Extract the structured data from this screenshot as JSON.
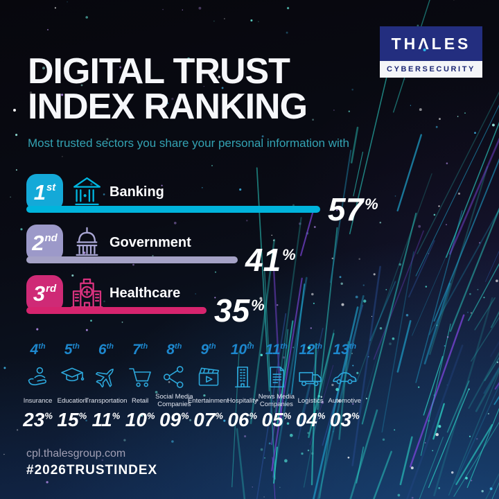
{
  "brand": {
    "logo_part1": "TH",
    "logo_lambda": "Λ",
    "logo_part2": "LES",
    "logo_sub": "CYBERSECURITY",
    "navy": "#232e7f",
    "accent_dot": "#2ab5e8"
  },
  "header": {
    "title_line1": "DIGITAL TRUST",
    "title_line2": "INDEX RANKING",
    "subtitle": "Most trusted sectors you share your personal information with"
  },
  "top_rankings": [
    {
      "rank": "1",
      "suffix": "st",
      "label": "Banking",
      "value": 57,
      "display": "57",
      "unit": "%",
      "badge_color": "#14a9d8",
      "bar_color": "#00b4dc",
      "icon": "bank-icon"
    },
    {
      "rank": "2",
      "suffix": "nd",
      "label": "Government",
      "value": 41,
      "display": "41",
      "unit": "%",
      "badge_color": "#9c99c9",
      "bar_color": "#a5a2c6",
      "icon": "government-icon"
    },
    {
      "rank": "3",
      "suffix": "rd",
      "label": "Healthcare",
      "value": 35,
      "display": "35",
      "unit": "%",
      "badge_color": "#cf2a76",
      "bar_color": "#d6246e",
      "icon": "hospital-icon"
    }
  ],
  "minor_rankings": [
    {
      "rank": "4",
      "suffix": "th",
      "label": "Insurance",
      "value": 23,
      "display": "23",
      "unit": "%",
      "icon": "insurance-icon"
    },
    {
      "rank": "5",
      "suffix": "th",
      "label": "Education",
      "value": 15,
      "display": "15",
      "unit": "%",
      "icon": "education-icon"
    },
    {
      "rank": "6",
      "suffix": "th",
      "label": "Transportation",
      "value": 11,
      "display": "11",
      "unit": "%",
      "icon": "transportation-icon"
    },
    {
      "rank": "7",
      "suffix": "th",
      "label": "Retail",
      "value": 10,
      "display": "10",
      "unit": "%",
      "icon": "retail-icon"
    },
    {
      "rank": "8",
      "suffix": "th",
      "label": "Social Media\nCompanies",
      "value": 9,
      "display": "09",
      "unit": "%",
      "icon": "social-media-icon"
    },
    {
      "rank": "9",
      "suffix": "th",
      "label": "Entertainment",
      "value": 7,
      "display": "07",
      "unit": "%",
      "icon": "entertainment-icon"
    },
    {
      "rank": "10",
      "suffix": "th",
      "label": "Hospitality",
      "value": 6,
      "display": "06",
      "unit": "%",
      "icon": "hospitality-icon"
    },
    {
      "rank": "11",
      "suffix": "th",
      "label": "News Media\nCompanies",
      "value": 5,
      "display": "05",
      "unit": "%",
      "icon": "news-media-icon"
    },
    {
      "rank": "12",
      "suffix": "th",
      "label": "Logistics",
      "value": 4,
      "display": "04",
      "unit": "%",
      "icon": "logistics-icon"
    },
    {
      "rank": "13",
      "suffix": "th",
      "label": "Automotive",
      "value": 3,
      "display": "03",
      "unit": "%",
      "icon": "automotive-icon"
    }
  ],
  "colors": {
    "minor_rank": "#1d87cd",
    "minor_icon": "#2da9dd",
    "subtitle": "#33a3b3"
  },
  "footer": {
    "website": "cpl.thalesgroup.com",
    "hashtag": "#2026TRUSTINDEX"
  },
  "chart_data": {
    "type": "bar",
    "title": "Digital Trust Index Ranking",
    "subtitle": "Most trusted sectors you share your personal information with",
    "categories": [
      "Banking",
      "Government",
      "Healthcare",
      "Insurance",
      "Education",
      "Transportation",
      "Retail",
      "Social Media Companies",
      "Entertainment",
      "Hospitality",
      "News Media Companies",
      "Logistics",
      "Automotive"
    ],
    "values": [
      57,
      41,
      35,
      23,
      15,
      11,
      10,
      9,
      7,
      6,
      5,
      4,
      3
    ],
    "ranks": [
      "1st",
      "2nd",
      "3rd",
      "4th",
      "5th",
      "6th",
      "7th",
      "8th",
      "9th",
      "10th",
      "11th",
      "12th",
      "13th"
    ],
    "unit": "%",
    "orientation": "horizontal",
    "xlim": [
      0,
      60
    ],
    "grid": false,
    "legend": false
  }
}
